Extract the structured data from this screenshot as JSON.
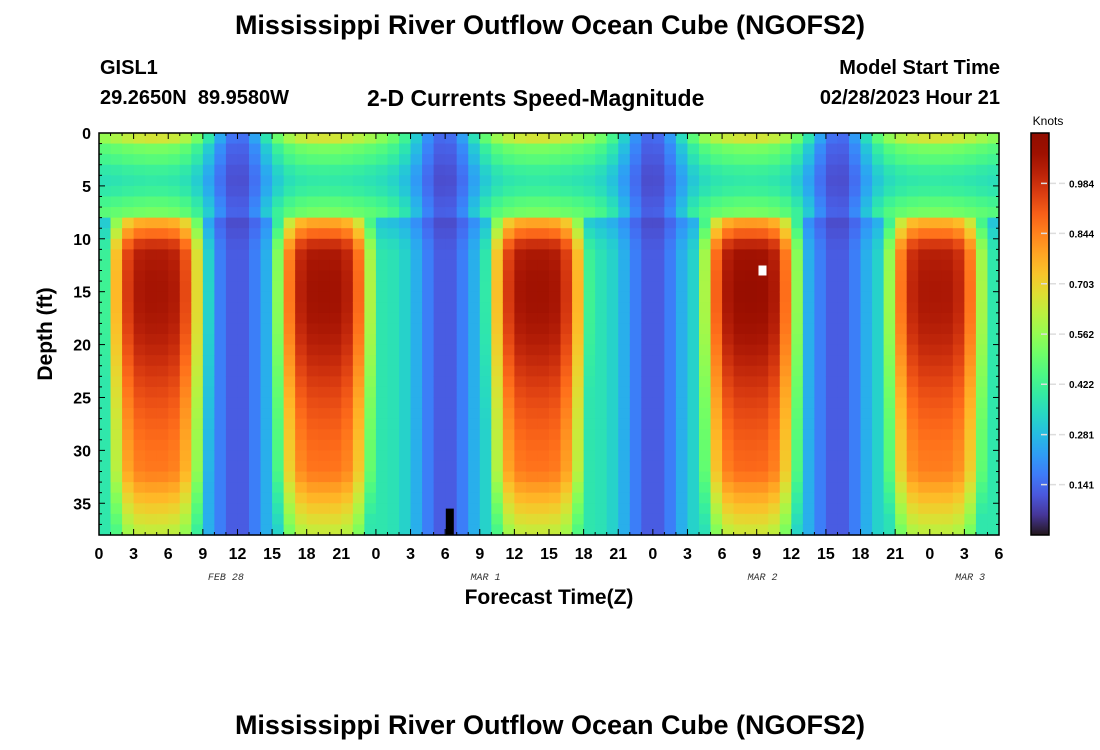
{
  "page": {
    "title": "Mississippi River Outflow Ocean Cube (NGOFS2)",
    "station_id": "GISL1",
    "station_coords": "29.2650N  89.9580W",
    "model_start_label": "Model Start Time",
    "model_start_value": "02/28/2023 Hour 21",
    "footer_title": "Mississippi River Outflow Ocean Cube (NGOFS2)"
  },
  "chart_data": {
    "type": "heatmap",
    "title": "2-D Currents Speed-Magnitude",
    "xlabel": "Forecast Time(Z)",
    "ylabel": "Depth (ft)",
    "x_range_hours": [
      0,
      78
    ],
    "x_ticks": [
      {
        "hour": 0,
        "label": "0"
      },
      {
        "hour": 3,
        "label": "3"
      },
      {
        "hour": 6,
        "label": "6"
      },
      {
        "hour": 9,
        "label": "9"
      },
      {
        "hour": 12,
        "label": "12"
      },
      {
        "hour": 15,
        "label": "15"
      },
      {
        "hour": 18,
        "label": "18"
      },
      {
        "hour": 21,
        "label": "21"
      },
      {
        "hour": 24,
        "label": "0"
      },
      {
        "hour": 27,
        "label": "3"
      },
      {
        "hour": 30,
        "label": "6"
      },
      {
        "hour": 33,
        "label": "9"
      },
      {
        "hour": 36,
        "label": "12"
      },
      {
        "hour": 39,
        "label": "15"
      },
      {
        "hour": 42,
        "label": "18"
      },
      {
        "hour": 45,
        "label": "21"
      },
      {
        "hour": 48,
        "label": "0"
      },
      {
        "hour": 51,
        "label": "3"
      },
      {
        "hour": 54,
        "label": "6"
      },
      {
        "hour": 57,
        "label": "9"
      },
      {
        "hour": 60,
        "label": "12"
      },
      {
        "hour": 63,
        "label": "15"
      },
      {
        "hour": 66,
        "label": "18"
      },
      {
        "hour": 69,
        "label": "21"
      },
      {
        "hour": 72,
        "label": "0"
      },
      {
        "hour": 75,
        "label": "3"
      },
      {
        "hour": 78,
        "label": "6"
      }
    ],
    "date_labels": [
      {
        "hour": 11,
        "label": "FEB 28"
      },
      {
        "hour": 33.5,
        "label": "MAR 1"
      },
      {
        "hour": 57.5,
        "label": "MAR 2"
      },
      {
        "hour": 75.5,
        "label": "MAR 3"
      }
    ],
    "y_range_ft": [
      0,
      38
    ],
    "y_ticks": [
      0,
      5,
      10,
      15,
      20,
      25,
      30,
      35
    ],
    "colorbar": {
      "label": "Knots",
      "min": 0.0,
      "max": 1.125,
      "tick_values": [
        0.984,
        0.844,
        0.703,
        0.562,
        0.422,
        0.281,
        0.141
      ],
      "tick_labels": [
        "0.984",
        "0.844",
        "0.703",
        "0.562",
        "0.422",
        "0.281",
        "0.141"
      ]
    },
    "surface_layer_ft": [
      0,
      8
    ],
    "speed_peaks": [
      {
        "hour": 5,
        "deep_peak_knots": 1.05
      },
      {
        "hour": 19.5,
        "deep_peak_knots": 1.06
      },
      {
        "hour": 38,
        "deep_peak_knots": 1.06
      },
      {
        "hour": 56.5,
        "deep_peak_knots": 1.08
      },
      {
        "hour": 72.5,
        "deep_peak_knots": 1.04
      }
    ],
    "slack_periods_hours": [
      12,
      30,
      48,
      64
    ],
    "markers": [
      {
        "hour": 57.5,
        "depth_ft": 13,
        "color": "#ffffff"
      },
      {
        "hour": 30.4,
        "depth_ft": 37,
        "color": "#000000"
      }
    ]
  }
}
